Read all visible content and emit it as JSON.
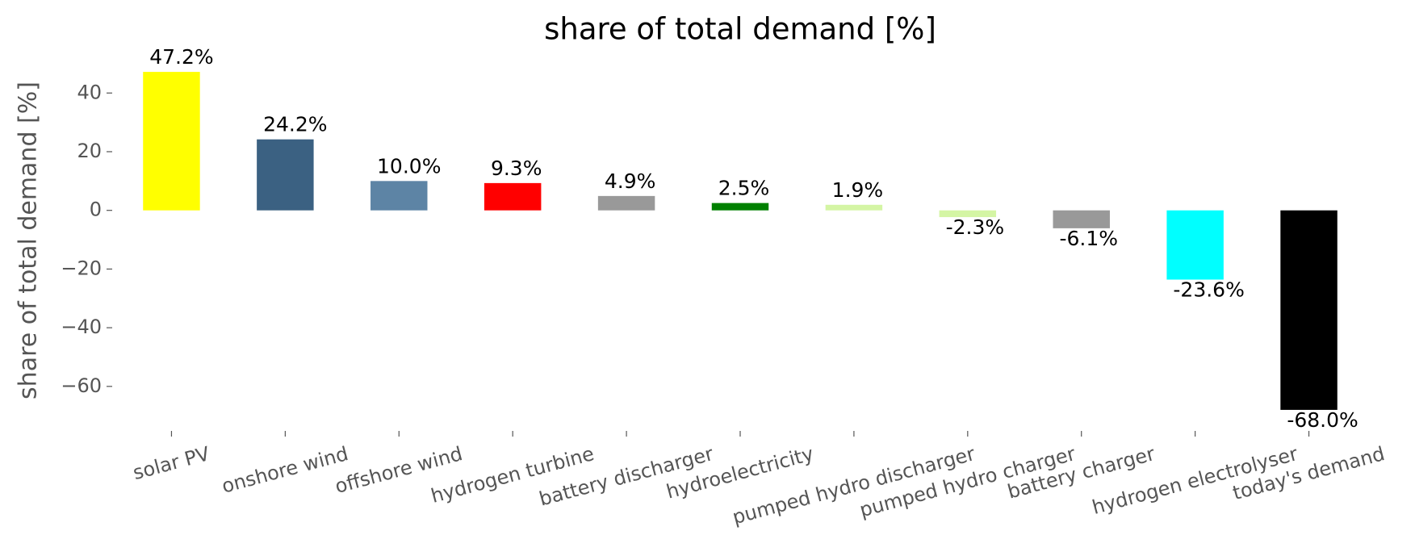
{
  "chart_data": {
    "type": "bar",
    "title": "share of total demand [%]",
    "y_label": "share of total demand [%]",
    "categories": [
      "solar PV",
      "onshore wind",
      "offshore wind",
      "hydrogen turbine",
      "battery discharger",
      "hydroelectricity",
      "pumped hydro discharger",
      "pumped hydro charger",
      "battery charger",
      "hydrogen electrolyser",
      "today's demand"
    ],
    "values": [
      47.2,
      24.2,
      10.0,
      9.3,
      4.9,
      2.5,
      1.9,
      -2.3,
      -6.1,
      -23.6,
      -68.0
    ],
    "value_labels": [
      "47.2%",
      "24.2%",
      "10.0%",
      "9.3%",
      "4.9%",
      "2.5%",
      "1.9%",
      "-2.3%",
      "-6.1%",
      "-23.6%",
      "-68.0%"
    ],
    "colors": [
      "#ffff00",
      "#3b6182",
      "#5d84a5",
      "#ff0000",
      "#999999",
      "#008000",
      "#d4f5a4",
      "#d4f5a4",
      "#999999",
      "#00ffff",
      "#000000"
    ],
    "ylim": [
      -73.8,
      53.0
    ],
    "yticks": [
      {
        "value": -60,
        "label": "−60"
      },
      {
        "value": -40,
        "label": "−40"
      },
      {
        "value": -20,
        "label": "−20"
      },
      0,
      20,
      40
    ],
    "grid": false
  }
}
